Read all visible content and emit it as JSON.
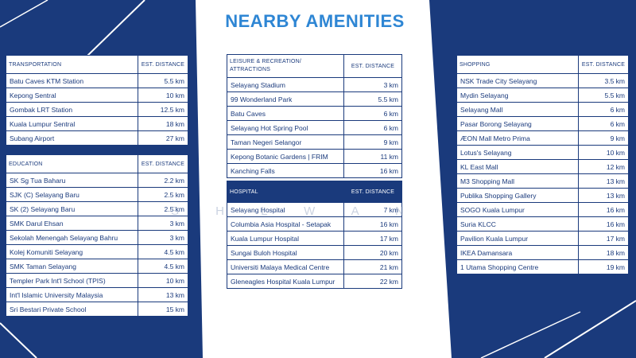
{
  "title": "NEARBY AMENITIES",
  "watermark": "S H   L   W A N",
  "distance_header": "EST. DISTANCE",
  "transportation": {
    "header": "TRANSPORTATION",
    "rows": [
      {
        "name": "Batu Caves KTM Station",
        "distance": "5.5 km"
      },
      {
        "name": "Kepong Sentral",
        "distance": "10 km"
      },
      {
        "name": "Gombak LRT Station",
        "distance": "12.5 km"
      },
      {
        "name": "Kuala Lumpur Sentral",
        "distance": "18 km"
      },
      {
        "name": "Subang Airport",
        "distance": "27 km"
      }
    ]
  },
  "education": {
    "header": "EDUCATION",
    "rows": [
      {
        "name": "SK Sg Tua Baharu",
        "distance": "2.2 km"
      },
      {
        "name": "SJK (C) Selayang Baru",
        "distance": "2.5 km"
      },
      {
        "name": "SK (2) Selayang Baru",
        "distance": "2.5 km"
      },
      {
        "name": "SMK Darul Ehsan",
        "distance": "3 km"
      },
      {
        "name": "Sekolah Menengah Selayang Bahru",
        "distance": "3 km"
      },
      {
        "name": "Kolej Komuniti Selayang",
        "distance": "4.5 km"
      },
      {
        "name": "SMK Taman Selayang",
        "distance": "4.5 km"
      },
      {
        "name": "Templer Park Int'l School (TPIS)",
        "distance": "10 km"
      },
      {
        "name": "Int'l Islamic University Malaysia",
        "distance": "13 km"
      },
      {
        "name": "Sri Bestari Private School",
        "distance": "15 km"
      }
    ]
  },
  "leisure": {
    "header": "LEISURE & RECREATION/ ATTRACTIONS",
    "rows": [
      {
        "name": "Selayang Stadium",
        "distance": "3 km"
      },
      {
        "name": "99 Wonderland Park",
        "distance": "5.5 km"
      },
      {
        "name": "Batu Caves",
        "distance": "6 km"
      },
      {
        "name": "Selayang Hot Spring Pool",
        "distance": "6 km"
      },
      {
        "name": "Taman Negeri Selangor",
        "distance": "9 km"
      },
      {
        "name": "Kepong Botanic Gardens | FRIM",
        "distance": "11 km"
      },
      {
        "name": "Kanching Falls",
        "distance": "16 km"
      }
    ]
  },
  "hospital": {
    "header": "HOSPITAL",
    "rows": [
      {
        "name": "Selayang Hospital",
        "distance": "7 km"
      },
      {
        "name": "Columbia Asia Hospital - Setapak",
        "distance": "16 km"
      },
      {
        "name": "Kuala Lumpur Hospital",
        "distance": "17 km"
      },
      {
        "name": "Sungai Buloh Hospital",
        "distance": "20 km"
      },
      {
        "name": "Universiti Malaya Medical Centre",
        "distance": "21 km"
      },
      {
        "name": "Gleneagles Hospital Kuala Lumpur",
        "distance": "22 km"
      }
    ]
  },
  "shopping": {
    "header": "SHOPPING",
    "rows": [
      {
        "name": "NSK Trade City Selayang",
        "distance": "3.5 km"
      },
      {
        "name": "Mydin Selayang",
        "distance": "5.5 km"
      },
      {
        "name": "Selayang Mall",
        "distance": "6 km"
      },
      {
        "name": "Pasar Borong Selayang",
        "distance": "6 km"
      },
      {
        "name": "ÆON Mall Metro Prima",
        "distance": "9 km"
      },
      {
        "name": "Lotus's Selayang",
        "distance": "10 km"
      },
      {
        "name": "KL East Mall",
        "distance": "12 km"
      },
      {
        "name": "M3 Shopping Mall",
        "distance": "13 km"
      },
      {
        "name": "Publika Shopping Gallery",
        "distance": "13 km"
      },
      {
        "name": "SOGO Kuala Lumpur",
        "distance": "16 km"
      },
      {
        "name": "Suria KLCC",
        "distance": "16 km"
      },
      {
        "name": "Pavilion Kuala Lumpur",
        "distance": "17 km"
      },
      {
        "name": "IKEA Damansara",
        "distance": "18 km"
      },
      {
        "name": "1 Utama Shopping Centre",
        "distance": "19 km"
      }
    ]
  }
}
